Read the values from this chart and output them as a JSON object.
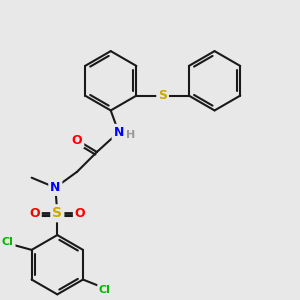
{
  "background_color": "#e8e8e8",
  "bond_color": "#1a1a1a",
  "atom_colors": {
    "N": "#0000ff",
    "O": "#ff0000",
    "S_sulfonyl": "#ccaa00",
    "S_sulfanyl": "#ccaa00",
    "Cl": "#00bb00",
    "H": "#999999",
    "C": "#1a1a1a"
  },
  "figsize": [
    3.0,
    3.0
  ],
  "dpi": 100
}
